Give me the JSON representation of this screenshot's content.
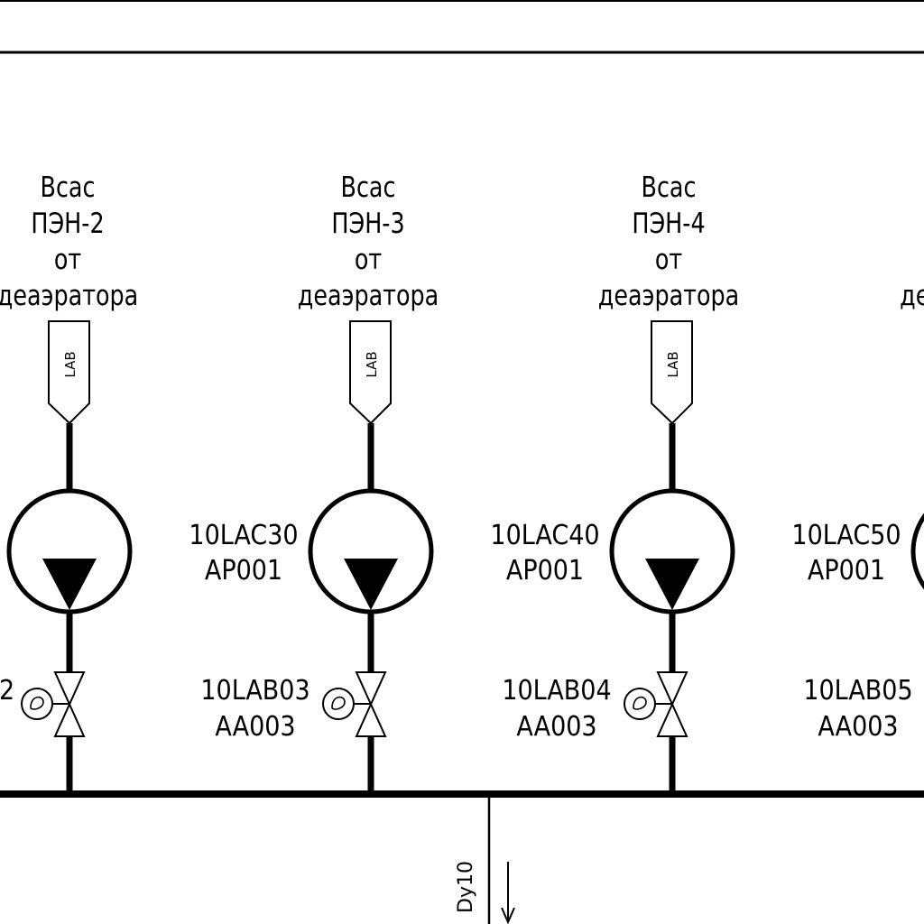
{
  "units": [
    {
      "desc": [
        "Всас",
        "ПЭН-2",
        "от",
        "деаэратора"
      ],
      "flag": "LAB",
      "pump_tag": [
        "",
        ""
      ],
      "valve_tag": [
        "2",
        ""
      ]
    },
    {
      "desc": [
        "Всас",
        "ПЭН-3",
        "от",
        "деаэратора"
      ],
      "flag": "LAB",
      "pump_tag": [
        "10LAC30",
        "AP001"
      ],
      "valve_tag": [
        "10LAB03",
        "AA003"
      ]
    },
    {
      "desc": [
        "Всас",
        "ПЭН-4",
        "от",
        "деаэратора"
      ],
      "flag": "LAB",
      "pump_tag": [
        "10LAC40",
        "AP001"
      ],
      "valve_tag": [
        "10LAB04",
        "AA003"
      ]
    },
    {
      "desc": [
        "",
        "",
        "",
        "деаэратора"
      ],
      "flag": "",
      "pump_tag": [
        "10LAC50",
        "AP001"
      ],
      "valve_tag": [
        "10LAB05",
        "AA003"
      ]
    }
  ],
  "drain_label": "Dy10"
}
